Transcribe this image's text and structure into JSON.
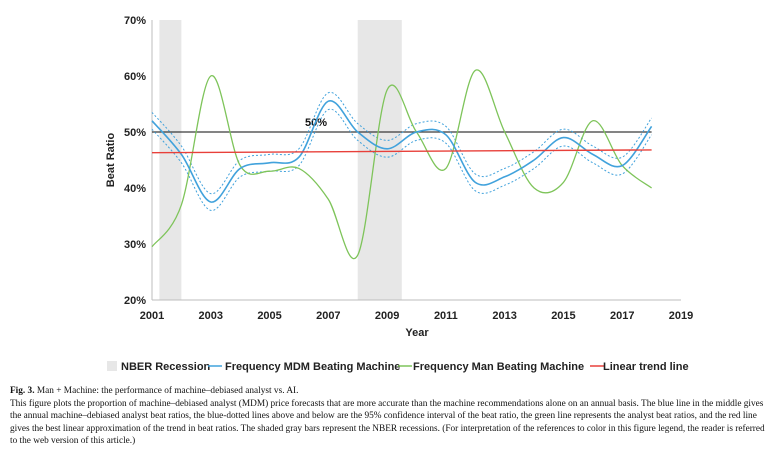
{
  "chart_data": {
    "type": "line",
    "title": "",
    "xlabel": "Year",
    "ylabel": "Beat Ratio",
    "xlim": [
      2001,
      2019
    ],
    "ylim": [
      20,
      70
    ],
    "x_ticks": [
      "2001",
      "2003",
      "2005",
      "2007",
      "2009",
      "2011",
      "2013",
      "2015",
      "2017",
      "2019"
    ],
    "y_ticks": [
      "20%",
      "30%",
      "40%",
      "50%",
      "60%",
      "70%"
    ],
    "grid": false,
    "legend_position": "bottom",
    "recessions": [
      {
        "start": 2001.25,
        "end": 2002.0
      },
      {
        "start": 2008.0,
        "end": 2009.5
      }
    ],
    "series": [
      {
        "name": "Frequency MDM Beating Machine",
        "color": "#41a2dc",
        "x": [
          2001,
          2002,
          2003,
          2004,
          2005,
          2006,
          2007,
          2008,
          2009,
          2010,
          2011,
          2012,
          2013,
          2014,
          2015,
          2016,
          2017,
          2018
        ],
        "values": [
          52,
          46,
          37.5,
          43.5,
          44.5,
          45.5,
          55.5,
          50,
          47,
          50,
          49.5,
          41,
          42,
          45,
          49,
          46,
          44,
          51
        ]
      },
      {
        "name": "Frequency Man Beating Machine",
        "color": "#7ec45a",
        "x": [
          2001,
          2002,
          2003,
          2004,
          2005,
          2006,
          2007,
          2008,
          2009,
          2010,
          2011,
          2012,
          2013,
          2014,
          2015,
          2016,
          2017,
          2018
        ],
        "values": [
          29.5,
          37,
          60,
          44,
          43,
          43.5,
          38,
          28,
          57.5,
          50,
          43.5,
          61,
          50,
          40,
          41,
          52,
          44,
          40
        ]
      },
      {
        "name": "Linear trend line",
        "color": "#e8403a",
        "x": [
          2001,
          2018
        ],
        "values": [
          46.3,
          46.8
        ]
      }
    ],
    "confidence_band": {
      "offset": 1.5
    },
    "reference_line": {
      "value": 50,
      "label": "50%"
    },
    "legend": [
      {
        "label": "NBER Recession",
        "color": "#e7e7e7"
      },
      {
        "label": "Frequency MDM Beating Machine",
        "color": "#41a2dc"
      },
      {
        "label": "Frequency Man Beating Machine",
        "color": "#7ec45a"
      },
      {
        "label": "Linear trend line",
        "color": "#e8403a"
      }
    ]
  },
  "caption": {
    "label": "Fig. 3.",
    "title": "Man + Machine: the performance of machine–debiased analyst vs. AI.",
    "body": "This figure plots the proportion of machine–debiased analyst (MDM) price forecasts that are more accurate than the machine recommendations alone on an annual basis. The blue line in the middle gives the annual machine–debiased analyst beat ratios, the blue-dotted lines above and below are the 95% confidence interval of the beat ratio, the green line represents the analyst beat ratios, and the red line gives the best linear approximation of the trend in beat ratios. The shaded gray bars represent the NBER recessions. (For interpretation of the references to color in this figure legend, the reader is referred to the web version of this article.)"
  }
}
